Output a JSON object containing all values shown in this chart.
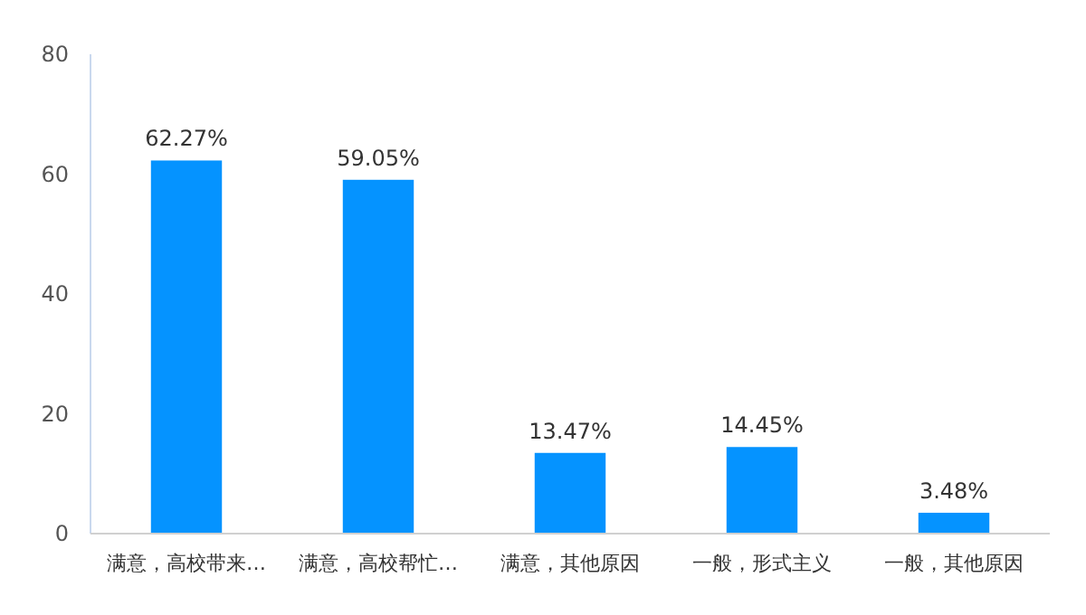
{
  "chart_data": {
    "type": "bar",
    "categories": [
      "满意，高校带来…",
      "满意，高校帮忙…",
      "满意，其他原因",
      "一般，形式主义",
      "一般，其他原因"
    ],
    "values": [
      62.27,
      59.05,
      13.47,
      14.45,
      3.48
    ],
    "value_labels": [
      "62.27%",
      "59.05%",
      "13.47%",
      "14.45%",
      "3.48%"
    ],
    "color": "#0593ff",
    "ylim": [
      0,
      80
    ],
    "yticks": [
      0,
      20,
      40,
      60,
      80
    ],
    "grid": false
  }
}
